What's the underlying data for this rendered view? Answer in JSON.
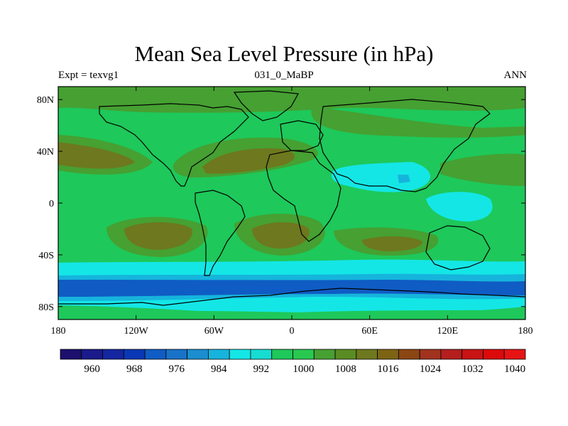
{
  "title": "Mean Sea Level Pressure (in hPa)",
  "subtitle_left": "Expt = texvg1",
  "subtitle_center": "031_0_MaBP",
  "subtitle_right": "ANN",
  "lat_labels": [
    {
      "text": "80N",
      "lat": 80
    },
    {
      "text": "40N",
      "lat": 40
    },
    {
      "text": "0",
      "lat": 0
    },
    {
      "text": "40S",
      "lat": -40
    },
    {
      "text": "80S",
      "lat": -80
    }
  ],
  "lon_labels": [
    {
      "text": "180",
      "lon": -180
    },
    {
      "text": "120W",
      "lon": -120
    },
    {
      "text": "60W",
      "lon": -60
    },
    {
      "text": "0",
      "lon": 0
    },
    {
      "text": "60E",
      "lon": 60
    },
    {
      "text": "120E",
      "lon": 120
    },
    {
      "text": "180",
      "lon": 180
    }
  ],
  "colorbar": {
    "colors": [
      "#1c0f6e",
      "#1a1a8c",
      "#1426a0",
      "#0a38b4",
      "#0f5cc4",
      "#1872c8",
      "#1a8ed0",
      "#16b4dc",
      "#14e6e6",
      "#17dcd2",
      "#1ec85a",
      "#28c850",
      "#46a032",
      "#5a8c23",
      "#6e781e",
      "#7d6414",
      "#8c4614",
      "#a0321e",
      "#b41e1e",
      "#c81414",
      "#dc0a0a",
      "#e61414"
    ],
    "labels": [
      {
        "text": "960",
        "index": 2
      },
      {
        "text": "968",
        "index": 4
      },
      {
        "text": "976",
        "index": 6
      },
      {
        "text": "984",
        "index": 8
      },
      {
        "text": "992",
        "index": 10
      },
      {
        "text": "1000",
        "index": 12
      },
      {
        "text": "1008",
        "index": 14
      },
      {
        "text": "1016",
        "index": 16
      },
      {
        "text": "1024",
        "index": 18
      },
      {
        "text": "1032",
        "index": 20
      },
      {
        "text": "1040",
        "index": 22
      }
    ]
  },
  "field_colors": {
    "base": "#1ec85a",
    "high": "#46a032",
    "higher": "#6e781e",
    "low": "#14e6e6",
    "lower": "#16b4dc",
    "lowest": "#0f5cc4",
    "deep": "#1872c8"
  }
}
